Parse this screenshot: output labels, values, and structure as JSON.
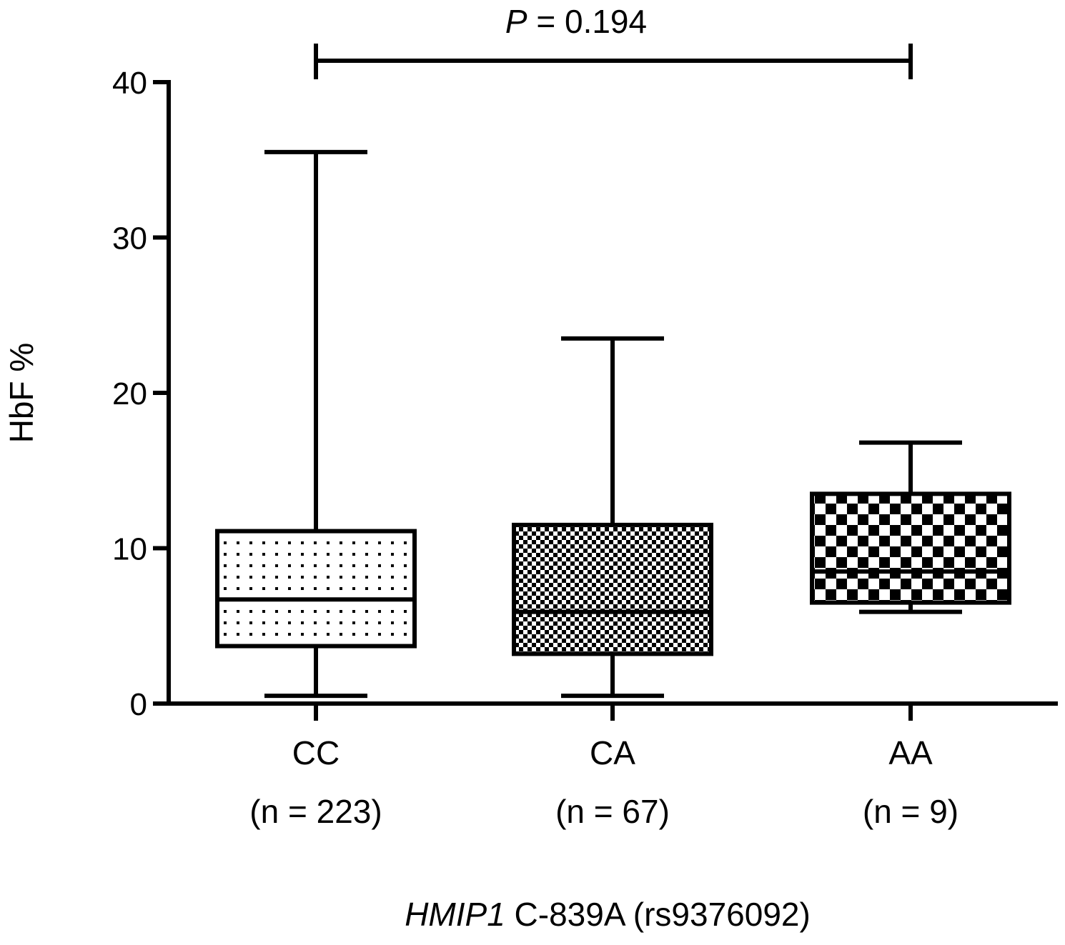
{
  "chart_data": {
    "type": "boxplot",
    "ylabel": "HbF %",
    "xlabel": {
      "gene": "HMIP1",
      "rest": " C-839A (rs9376092)"
    },
    "ylim": [
      0,
      40
    ],
    "yticks": [
      0,
      10,
      20,
      30,
      40
    ],
    "categories": [
      "CC",
      "CA",
      "AA"
    ],
    "sample_sizes": [
      "(n = 223)",
      "(n = 67)",
      "(n = 9)"
    ],
    "boxes": [
      {
        "category": "CC",
        "min": 0.5,
        "q1": 3.7,
        "median": 6.7,
        "q3": 11.1,
        "max": 35.5,
        "pattern": "sparse-dots"
      },
      {
        "category": "CA",
        "min": 0.5,
        "q1": 3.2,
        "median": 5.9,
        "q3": 11.5,
        "max": 23.5,
        "pattern": "fine-checker"
      },
      {
        "category": "AA",
        "min": 5.9,
        "q1": 6.5,
        "median": 8.5,
        "q3": 13.5,
        "max": 16.8,
        "pattern": "coarse-checker"
      }
    ],
    "comparison": {
      "from": "CC",
      "to": "AA",
      "p_symbol": "P",
      "p_text": " = 0.194"
    },
    "colors": {
      "line": "#000000",
      "background": "#ffffff"
    }
  }
}
